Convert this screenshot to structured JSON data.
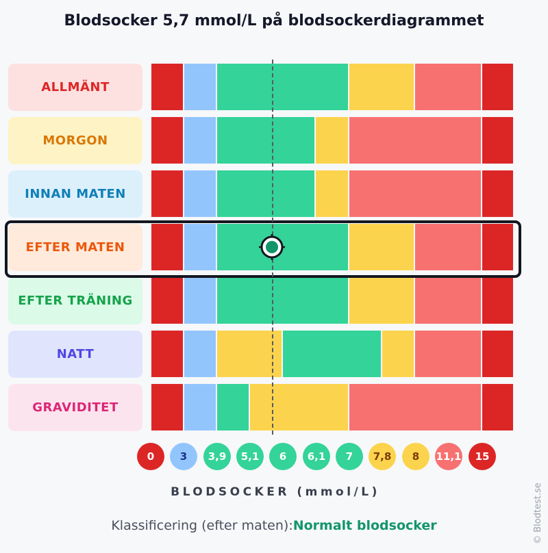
{
  "title": "Blodsocker 5,7 mmol/L på blodsockerdiagrammet",
  "colors": {
    "dark_red": "#dc2626",
    "blue": "#93c5fd",
    "green": "#34d399",
    "yellow": "#fcd34d",
    "light_red": "#f87171",
    "highlight_border": "#14161f",
    "marker_green": "#13956b"
  },
  "chart_data": {
    "type": "table",
    "title": "Blodsocker 5,7 mmol/L på blodsockerdiagrammet",
    "xlabel": "BLODSOCKER (mmol/L)",
    "marker_value": 5.7,
    "highlighted_row": "EFTER MATEN",
    "x_ticks": [
      {
        "label": "0",
        "color": "dark_red"
      },
      {
        "label": "3",
        "color": "blue"
      },
      {
        "label": "3,9",
        "color": "green"
      },
      {
        "label": "5,1",
        "color": "green"
      },
      {
        "label": "6",
        "color": "green"
      },
      {
        "label": "6,1",
        "color": "green"
      },
      {
        "label": "7",
        "color": "green"
      },
      {
        "label": "7,8",
        "color": "yellow"
      },
      {
        "label": "8",
        "color": "yellow"
      },
      {
        "label": "11,1",
        "color": "light_red"
      },
      {
        "label": "15",
        "color": "dark_red"
      }
    ],
    "rows": [
      {
        "name": "ALLMÄNT",
        "label_bg": "#fde0e0",
        "label_color": "#dc2626",
        "bands": [
          "dark_red",
          "blue",
          "green",
          "green",
          "green",
          "green",
          "yellow",
          "yellow",
          "light_red",
          "dark_red"
        ]
      },
      {
        "name": "MORGON",
        "label_bg": "#fef3c4",
        "label_color": "#d97706",
        "bands": [
          "dark_red",
          "blue",
          "green",
          "green",
          "green",
          "yellow",
          "light_red",
          "light_red",
          "light_red",
          "dark_red"
        ]
      },
      {
        "name": "INNAN MATEN",
        "label_bg": "#dcf0fc",
        "label_color": "#0f7fb8",
        "bands": [
          "dark_red",
          "blue",
          "green",
          "green",
          "green",
          "yellow",
          "light_red",
          "light_red",
          "light_red",
          "dark_red"
        ]
      },
      {
        "name": "EFTER MATEN",
        "label_bg": "#ffeadb",
        "label_color": "#ea580c",
        "bands": [
          "dark_red",
          "blue",
          "green",
          "green",
          "green",
          "green",
          "yellow",
          "yellow",
          "light_red",
          "dark_red"
        ]
      },
      {
        "name": "EFTER TRÄNING",
        "label_bg": "#dbfae8",
        "label_color": "#16a34a",
        "bands": [
          "dark_red",
          "blue",
          "green",
          "green",
          "green",
          "green",
          "yellow",
          "yellow",
          "light_red",
          "dark_red"
        ]
      },
      {
        "name": "NATT",
        "label_bg": "#e0e5fd",
        "label_color": "#4f46e5",
        "bands": [
          "dark_red",
          "blue",
          "yellow",
          "yellow",
          "green",
          "green",
          "green",
          "yellow",
          "light_red",
          "dark_red"
        ]
      },
      {
        "name": "GRAVIDITET",
        "label_bg": "#fce4ee",
        "label_color": "#db2777",
        "bands": [
          "dark_red",
          "blue",
          "green",
          "yellow",
          "yellow",
          "yellow",
          "light_red",
          "light_red",
          "light_red",
          "dark_red"
        ]
      }
    ]
  },
  "classification": {
    "prefix": "Klassificering (efter maten):",
    "result": "Normalt blodsocker"
  },
  "watermark": "© Blodtest.se"
}
